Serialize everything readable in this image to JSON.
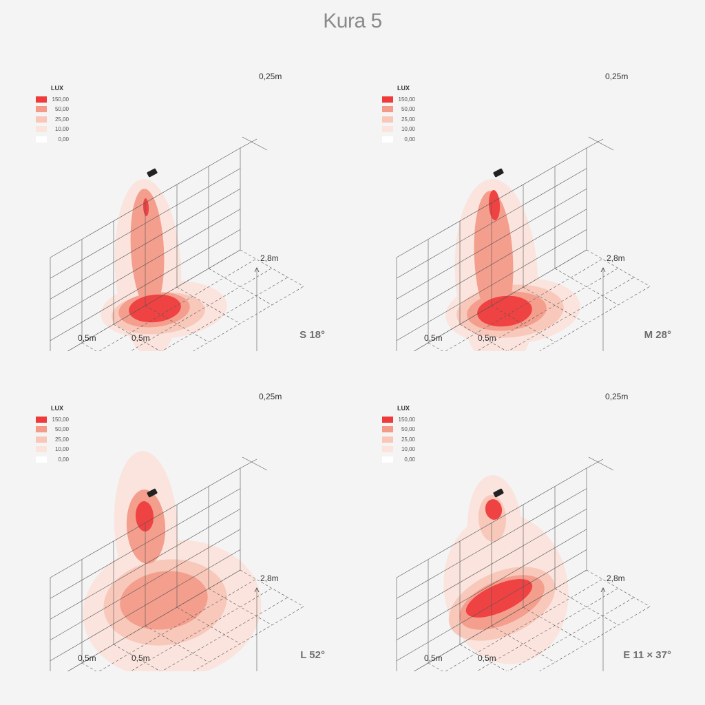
{
  "title": "Kura 5",
  "legend": {
    "title": "LUX",
    "entries": [
      {
        "value": "150,00",
        "color": "#ef3a3a"
      },
      {
        "value": "50,00",
        "color": "#f49a88"
      },
      {
        "value": "25,00",
        "color": "#f9c6b8"
      },
      {
        "value": "10,00",
        "color": "#fbe4dc"
      },
      {
        "value": "0,00",
        "color": "#ffffff"
      }
    ]
  },
  "dimensions": {
    "spacing_top": "0,25m",
    "height": "2,8m",
    "grid_left": "0,5m",
    "grid_right": "0,5m"
  },
  "panels": [
    {
      "beam": "S 18°"
    },
    {
      "beam": "M 28°"
    },
    {
      "beam": "L 52°"
    },
    {
      "beam": "E 11 × 37°"
    }
  ]
}
